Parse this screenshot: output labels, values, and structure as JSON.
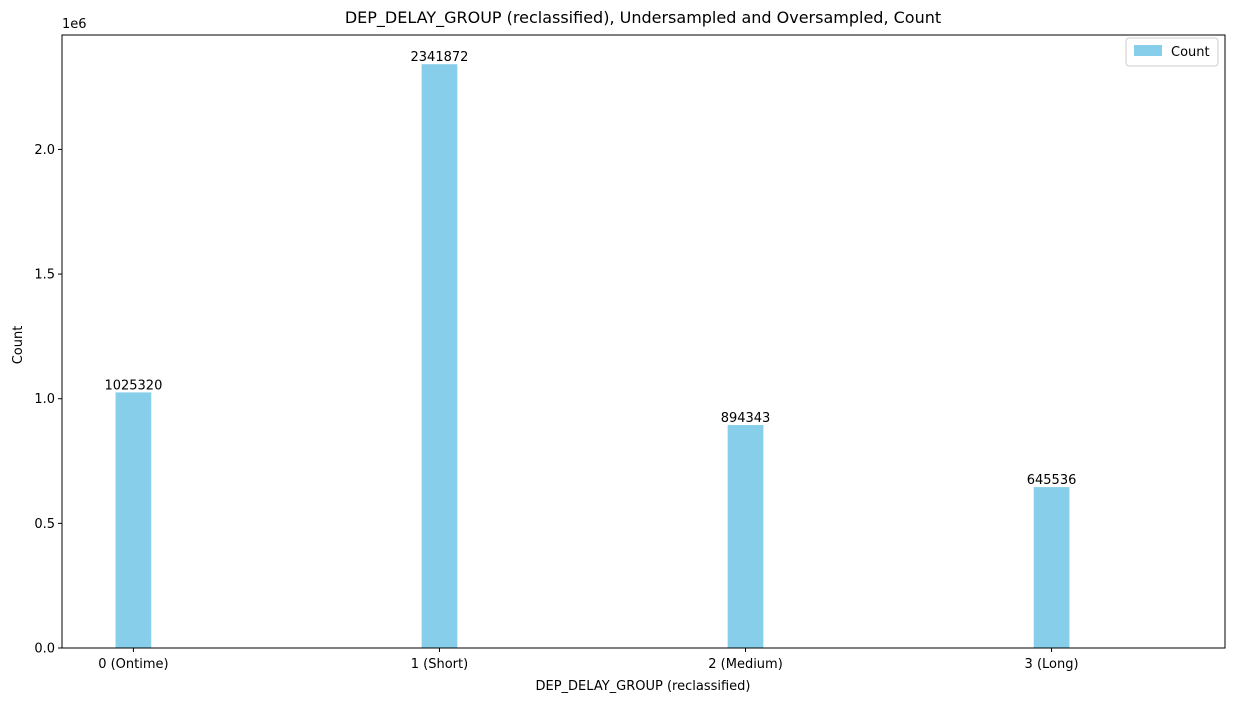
{
  "chart_data": {
    "type": "bar",
    "title": "DEP_DELAY_GROUP (reclassified), Undersampled and Oversampled, Count",
    "xlabel": "DEP_DELAY_GROUP (reclassified)",
    "ylabel": "Count",
    "offset_label": "1e6",
    "categories": [
      "0 (Ontime)",
      "1 (Short)",
      "2 (Medium)",
      "3 (Long)"
    ],
    "series": [
      {
        "name": "Count",
        "values": [
          1025320,
          2341872,
          894343,
          645536
        ],
        "color": "#87CEEB"
      }
    ],
    "data_labels": [
      "1025320",
      "2341872",
      "894343",
      "645536"
    ],
    "yticks": [
      0,
      500000,
      1000000,
      1500000,
      2000000
    ],
    "ytick_labels": [
      "0.0",
      "0.5",
      "1.0",
      "1.5",
      "2.0"
    ],
    "ylim": [
      0,
      2458966
    ],
    "grid": false,
    "legend": {
      "position": "top-right",
      "label": "Count"
    }
  }
}
